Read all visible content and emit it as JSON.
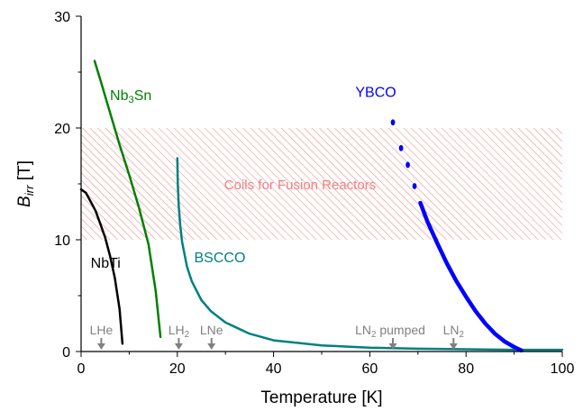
{
  "chart_data": {
    "type": "line",
    "xlabel": "Temperature [K]",
    "ylabel": {
      "main": "B",
      "sub": "irr",
      "unit": " [T]"
    },
    "xlim": [
      0,
      100
    ],
    "ylim": [
      0,
      30
    ],
    "xticks": [
      0,
      20,
      40,
      60,
      80,
      100
    ],
    "yticks": [
      0,
      10,
      20,
      30
    ],
    "grid": false,
    "band": {
      "label": "Coils for Fusion Reactors",
      "y_from": 10,
      "y_to": 20,
      "x_from": 0,
      "x_to": 100,
      "color": "#f08080"
    },
    "series": [
      {
        "name": "NbTi",
        "label_main": "NbTi",
        "label_sub": "",
        "label_rest": "",
        "color": "#000000",
        "style": "solid",
        "label_at": [
          2,
          7.5
        ],
        "points": [
          [
            0,
            14.5
          ],
          [
            1,
            14.2
          ],
          [
            2,
            13.4
          ],
          [
            3,
            12.6
          ],
          [
            4,
            11.4
          ],
          [
            5,
            10.2
          ],
          [
            6,
            8.6
          ],
          [
            7,
            6.6
          ],
          [
            8,
            3.8
          ],
          [
            8.6,
            0.7
          ]
        ]
      },
      {
        "name": "Nb3Sn",
        "label_main": "Nb",
        "label_sub": "3",
        "label_rest": "Sn",
        "color": "#008000",
        "style": "solid",
        "label_at": [
          6,
          22.5
        ],
        "points": [
          [
            2.8,
            26
          ],
          [
            4,
            24.3
          ],
          [
            6,
            21.4
          ],
          [
            8,
            18.5
          ],
          [
            10,
            15.8
          ],
          [
            12,
            12.9
          ],
          [
            14,
            9.6
          ],
          [
            15.5,
            5.4
          ],
          [
            16.5,
            1.3
          ]
        ]
      },
      {
        "name": "BSCCO",
        "label_main": "BSCCO",
        "label_sub": "",
        "label_rest": "",
        "color": "#008080",
        "style": "solid",
        "label_at": [
          23.5,
          8
        ],
        "points": [
          [
            20,
            17.3
          ],
          [
            20.1,
            15.0
          ],
          [
            20.3,
            13.0
          ],
          [
            20.6,
            11.3
          ],
          [
            21,
            9.8
          ],
          [
            22,
            7.6
          ],
          [
            23,
            6.3
          ],
          [
            25,
            4.6
          ],
          [
            27,
            3.6
          ],
          [
            30,
            2.6
          ],
          [
            35,
            1.6
          ],
          [
            40,
            1.0
          ],
          [
            50,
            0.55
          ],
          [
            60,
            0.35
          ],
          [
            70,
            0.25
          ],
          [
            80,
            0.2
          ],
          [
            90,
            0.15
          ],
          [
            100,
            0.15
          ]
        ]
      },
      {
        "name": "YBCO",
        "label_main": "YBCO",
        "label_sub": "",
        "label_rest": "",
        "color": "#0000ff",
        "style": "dotted-then-solid",
        "label_at": [
          57,
          22.8
        ],
        "dots": [
          [
            64.8,
            20.5
          ],
          [
            66.5,
            18.2
          ],
          [
            67.9,
            16.7
          ],
          [
            69.3,
            14.8
          ]
        ],
        "points": [
          [
            70.5,
            13.3
          ],
          [
            72,
            11.6
          ],
          [
            74,
            9.7
          ],
          [
            76,
            7.9
          ],
          [
            78,
            6.3
          ],
          [
            80,
            4.9
          ],
          [
            82,
            3.6
          ],
          [
            84,
            2.5
          ],
          [
            86,
            1.6
          ],
          [
            88,
            0.9
          ],
          [
            90,
            0.4
          ],
          [
            91.5,
            0.1
          ]
        ]
      }
    ],
    "markers": [
      {
        "main": "LHe",
        "sub": "",
        "rest": "",
        "x": 4.2
      },
      {
        "main": "LH",
        "sub": "2",
        "rest": "",
        "x": 20.3
      },
      {
        "main": "LNe",
        "sub": "",
        "rest": "",
        "x": 27.1
      },
      {
        "main": "LN",
        "sub": "2",
        "rest": " pumped",
        "x": 64.8
      },
      {
        "main": "LN",
        "sub": "2",
        "rest": "",
        "x": 77.4
      }
    ]
  }
}
